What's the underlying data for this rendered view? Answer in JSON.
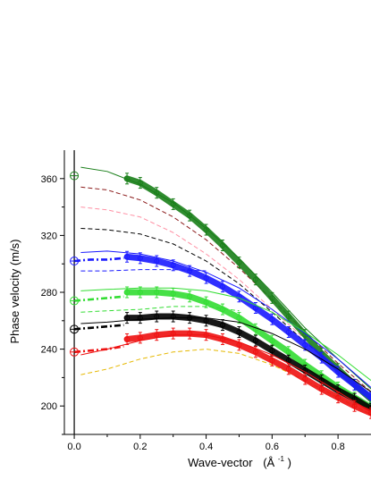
{
  "chart_data": {
    "type": "line",
    "title": "",
    "xlabel": "Wave-vector",
    "xlabel_unit": "(Å",
    "xlabel_unit_sup": "-1",
    "xlabel_unit_close": ")",
    "ylabel": "Phase velocity  (m/s)",
    "xlim": [
      -0.03,
      0.9
    ],
    "ylim": [
      180,
      380
    ],
    "x_ticks": [
      "0.0",
      "0.2",
      "0.4",
      "0.6",
      "0.8"
    ],
    "y_ticks": [
      "200",
      "240",
      "280",
      "320",
      "360"
    ],
    "grid": false,
    "legend": "none",
    "series": [
      {
        "color": "#1a7f1a",
        "zero_q_marker": 362,
        "solid": {
          "x": [
            0.02,
            0.1,
            0.2,
            0.3,
            0.4,
            0.5,
            0.6,
            0.7,
            0.8,
            0.9
          ],
          "y": [
            368,
            365,
            356,
            343,
            325,
            304,
            280,
            255,
            233,
            212
          ]
        },
        "markers": {
          "x": [
            0.16,
            0.2,
            0.25,
            0.3,
            0.35,
            0.4,
            0.45,
            0.5,
            0.55,
            0.6,
            0.65,
            0.7,
            0.75,
            0.8,
            0.85,
            0.9
          ],
          "y": [
            360,
            357,
            350,
            342,
            334,
            324,
            313,
            301,
            289,
            276,
            263,
            250,
            237,
            226,
            215,
            205
          ]
        }
      },
      {
        "color": "#1a1aff",
        "zero_q_marker": 302,
        "solid": {
          "x": [
            0.02,
            0.1,
            0.2,
            0.3,
            0.4,
            0.5,
            0.6,
            0.7,
            0.8,
            0.9
          ],
          "y": [
            308,
            309,
            307,
            302,
            294,
            283,
            268,
            251,
            233,
            213
          ]
        },
        "dashdot": {
          "x": [
            0.0,
            0.05,
            0.1,
            0.15
          ],
          "y": [
            302,
            303,
            303,
            304
          ]
        },
        "dashed": {
          "x": [
            0.02,
            0.1,
            0.2,
            0.3,
            0.4
          ],
          "y": [
            295,
            295,
            296,
            296,
            295
          ]
        },
        "markers": {
          "x": [
            0.16,
            0.2,
            0.25,
            0.3,
            0.35,
            0.4,
            0.45,
            0.5,
            0.55,
            0.6,
            0.65,
            0.7,
            0.75,
            0.8,
            0.85,
            0.9
          ],
          "y": [
            305,
            304,
            302,
            299,
            295,
            290,
            284,
            277,
            269,
            261,
            252,
            243,
            234,
            224,
            215,
            206
          ]
        }
      },
      {
        "color": "#33dd33",
        "zero_q_marker": 274,
        "solid": {
          "x": [
            0.02,
            0.1,
            0.2,
            0.3,
            0.4,
            0.5,
            0.6,
            0.7,
            0.8,
            0.9
          ],
          "y": [
            281,
            282,
            283,
            283,
            281,
            276,
            266,
            252,
            236,
            218
          ]
        },
        "dashdot": {
          "x": [
            0.0,
            0.05,
            0.1,
            0.15
          ],
          "y": [
            274,
            275,
            276,
            277
          ]
        },
        "dashed": {
          "x": [
            0.02,
            0.1,
            0.2,
            0.3,
            0.4,
            0.5
          ],
          "y": [
            266,
            267,
            268,
            270,
            270,
            267
          ]
        },
        "markers": {
          "x": [
            0.16,
            0.2,
            0.25,
            0.3,
            0.35,
            0.4,
            0.45,
            0.5,
            0.55,
            0.6,
            0.65,
            0.7,
            0.75,
            0.8,
            0.85,
            0.9
          ],
          "y": [
            280,
            280,
            280,
            279,
            277,
            273,
            268,
            262,
            254,
            246,
            238,
            229,
            221,
            213,
            206,
            199
          ]
        }
      },
      {
        "color": "#000000",
        "zero_q_marker": 254,
        "solid": {
          "x": [
            0.02,
            0.1,
            0.2,
            0.3,
            0.4,
            0.5,
            0.6,
            0.7,
            0.8,
            0.9
          ],
          "y": [
            258,
            259,
            261,
            262,
            262,
            259,
            251,
            240,
            226,
            210
          ]
        },
        "dashdot": {
          "x": [
            0.0,
            0.05,
            0.1,
            0.15
          ],
          "y": [
            254,
            255,
            256,
            257
          ]
        },
        "markers": {
          "x": [
            0.16,
            0.2,
            0.25,
            0.3,
            0.35,
            0.4,
            0.45,
            0.5,
            0.55,
            0.6,
            0.65,
            0.7,
            0.75,
            0.8,
            0.85,
            0.9
          ],
          "y": [
            262,
            262,
            263,
            263,
            262,
            260,
            257,
            252,
            246,
            239,
            232,
            225,
            218,
            211,
            205,
            198
          ]
        }
      },
      {
        "color": "#ee1111",
        "zero_q_marker": 238,
        "solid": {
          "x": [
            0.02,
            0.1,
            0.2,
            0.3,
            0.4,
            0.5,
            0.6,
            0.7,
            0.8,
            0.9
          ],
          "y": [
            236,
            240,
            246,
            250,
            250,
            245,
            236,
            224,
            210,
            196
          ]
        },
        "dashdot": {
          "x": [
            0.0,
            0.05,
            0.1,
            0.15
          ],
          "y": [
            238,
            239,
            240,
            242
          ]
        },
        "markers": {
          "x": [
            0.16,
            0.2,
            0.25,
            0.3,
            0.35,
            0.4,
            0.45,
            0.5,
            0.55,
            0.6,
            0.65,
            0.7,
            0.75,
            0.8,
            0.85,
            0.9
          ],
          "y": [
            247,
            248,
            250,
            251,
            251,
            250,
            247,
            243,
            238,
            232,
            226,
            219,
            212,
            206,
            200,
            195
          ]
        }
      }
    ],
    "extra_dashed": [
      {
        "color": "#8b1a1a",
        "x": [
          0.02,
          0.1,
          0.2,
          0.3,
          0.4,
          0.5,
          0.6,
          0.7,
          0.8,
          0.9
        ],
        "y": [
          354,
          352,
          345,
          333,
          317,
          297,
          275,
          252,
          230,
          210
        ]
      },
      {
        "color": "#ff8fa3",
        "x": [
          0.02,
          0.1,
          0.2,
          0.3,
          0.4,
          0.5,
          0.6,
          0.7,
          0.8,
          0.9
        ],
        "y": [
          340,
          338,
          333,
          322,
          307,
          289,
          268,
          247,
          226,
          207
        ]
      },
      {
        "color": "#000000",
        "x": [
          0.02,
          0.1,
          0.2,
          0.3,
          0.4,
          0.5,
          0.6,
          0.7,
          0.8,
          0.9
        ],
        "y": [
          325,
          324,
          321,
          314,
          302,
          286,
          266,
          245,
          226,
          207
        ]
      },
      {
        "color": "#e6b800",
        "x": [
          0.02,
          0.1,
          0.2,
          0.3,
          0.4,
          0.5,
          0.6,
          0.7,
          0.8,
          0.9
        ],
        "y": [
          222,
          226,
          233,
          238,
          240,
          237,
          229,
          218,
          206,
          194
        ]
      }
    ]
  }
}
